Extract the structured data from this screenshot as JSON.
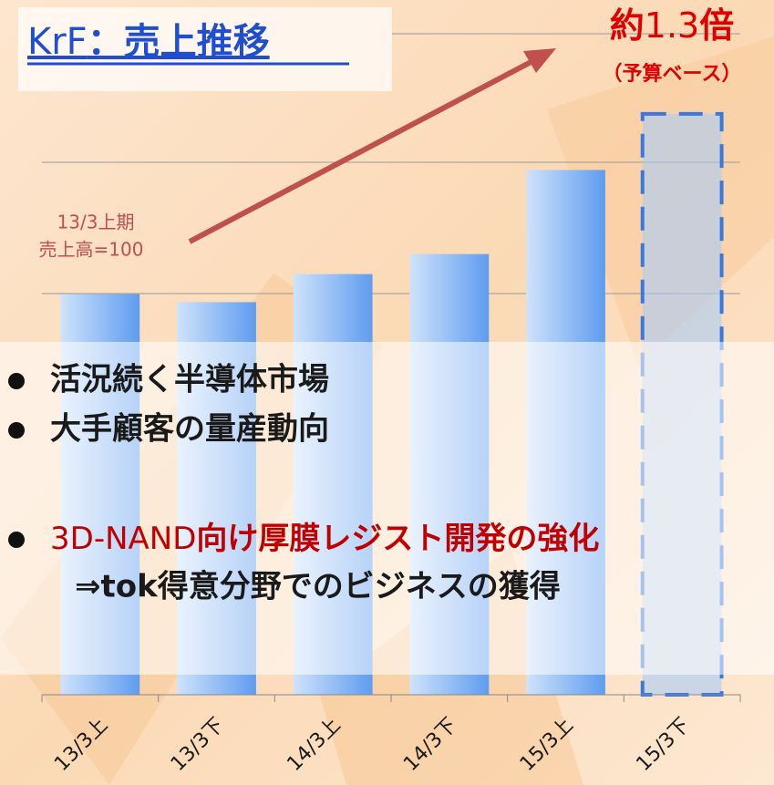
{
  "chart_data": {
    "type": "bar",
    "title_prefix": "KrF",
    "title": "：売上推移",
    "categories": [
      "13/3上",
      "13/3下",
      "14/3上",
      "14/3下",
      "15/3上",
      "15/3下"
    ],
    "values": [
      100,
      98,
      105,
      110,
      131,
      145
    ],
    "outline_dashed": [
      false,
      false,
      false,
      false,
      false,
      true
    ],
    "color": "#6fa8f5",
    "ylim": [
      0,
      165
    ],
    "annotations": {
      "ratio_prefix": "約",
      "ratio_number": "1.3",
      "ratio_suffix": "倍",
      "ratio_note": "（予算ベース）",
      "base_line1": "13/3上期",
      "base_line2": "売上高=100"
    },
    "bullets": [
      "活況続く半導体市場",
      "大手顧客の量産動向"
    ],
    "highlight_bullet": {
      "prefix": "3D-NAND",
      "text": "向け厚膜レジスト開発の強化"
    },
    "sub_bullet": "⇒tok得意分野でのビジネスの獲得"
  }
}
